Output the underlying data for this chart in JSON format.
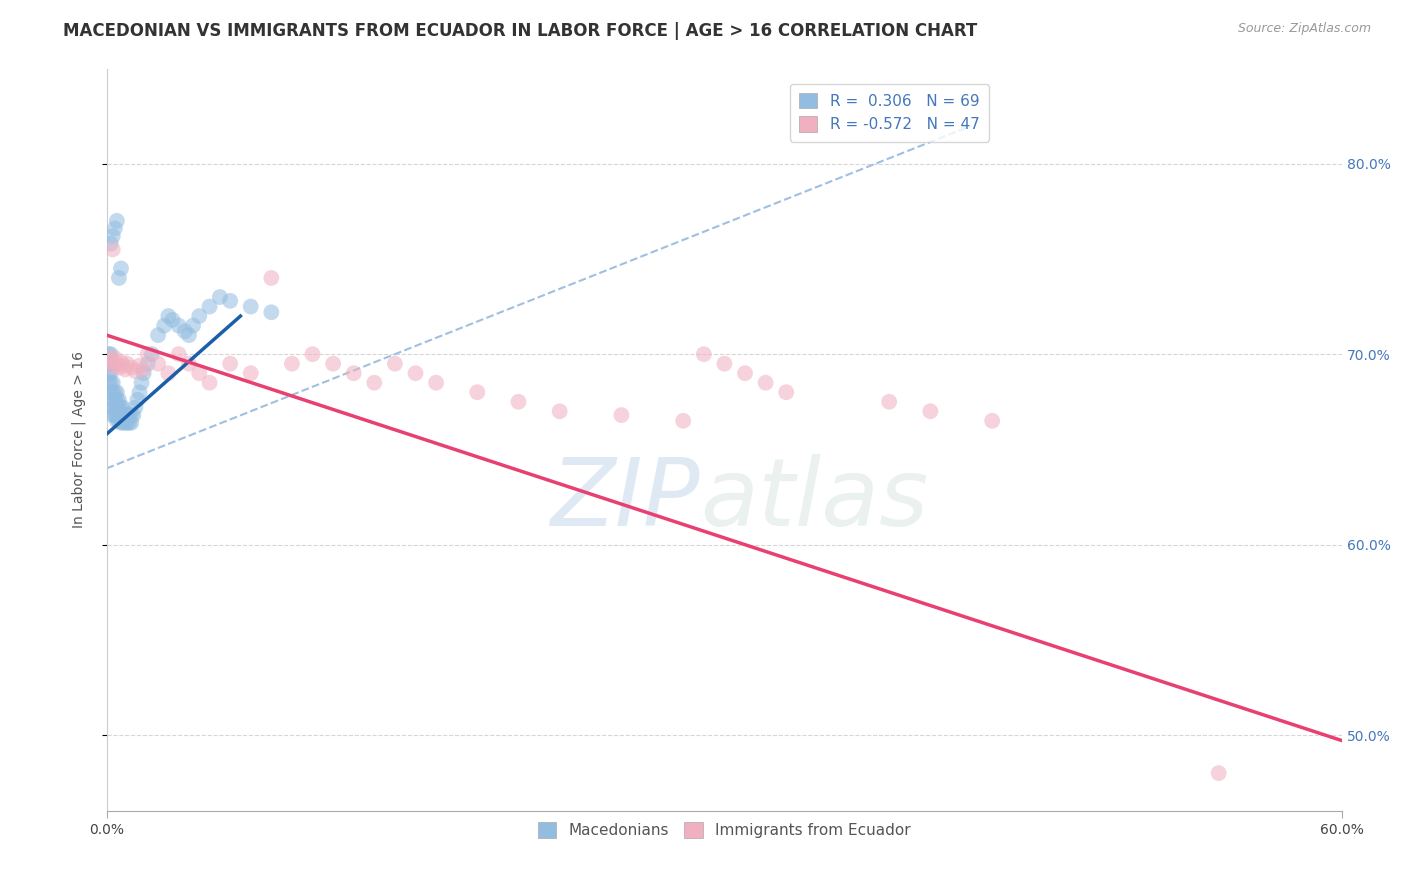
{
  "title": "MACEDONIAN VS IMMIGRANTS FROM ECUADOR IN LABOR FORCE | AGE > 16 CORRELATION CHART",
  "source_text": "Source: ZipAtlas.com",
  "ylabel": "In Labor Force | Age > 16",
  "watermark_zip": "ZIP",
  "watermark_atlas": "atlas",
  "legend_line1": "R =  0.306   N = 69",
  "legend_line2": "R = -0.572   N = 47",
  "legend_label1": "Macedonians",
  "legend_label2": "Immigrants from Ecuador",
  "blue_color": "#92bce0",
  "pink_color": "#f0b0c0",
  "blue_line_color": "#1a5fa8",
  "pink_line_color": "#e84070",
  "dashed_line_color": "#a0c0e0",
  "xlim": [
    0.0,
    0.6
  ],
  "ylim": [
    0.46,
    0.85
  ],
  "ytick_values": [
    0.5,
    0.6,
    0.7,
    0.8
  ],
  "ytick_labels": [
    "50.0%",
    "60.0%",
    "70.0%",
    "80.0%"
  ],
  "xtick_values": [
    0.0,
    0.6
  ],
  "xtick_labels": [
    "0.0%",
    "60.0%"
  ],
  "blue_scatter_x": [
    0.001,
    0.001,
    0.001,
    0.001,
    0.002,
    0.002,
    0.002,
    0.002,
    0.002,
    0.003,
    0.003,
    0.003,
    0.003,
    0.003,
    0.004,
    0.004,
    0.004,
    0.004,
    0.005,
    0.005,
    0.005,
    0.005,
    0.005,
    0.006,
    0.006,
    0.006,
    0.006,
    0.007,
    0.007,
    0.007,
    0.008,
    0.008,
    0.008,
    0.009,
    0.009,
    0.01,
    0.01,
    0.011,
    0.011,
    0.012,
    0.012,
    0.013,
    0.014,
    0.015,
    0.016,
    0.017,
    0.018,
    0.02,
    0.022,
    0.025,
    0.028,
    0.03,
    0.032,
    0.035,
    0.038,
    0.04,
    0.042,
    0.045,
    0.05,
    0.055,
    0.06,
    0.07,
    0.08,
    0.002,
    0.003,
    0.004,
    0.005,
    0.006,
    0.007
  ],
  "blue_scatter_y": [
    0.685,
    0.69,
    0.695,
    0.7,
    0.68,
    0.685,
    0.69,
    0.695,
    0.7,
    0.668,
    0.672,
    0.676,
    0.68,
    0.685,
    0.668,
    0.672,
    0.676,
    0.68,
    0.665,
    0.668,
    0.672,
    0.676,
    0.68,
    0.665,
    0.668,
    0.672,
    0.676,
    0.664,
    0.668,
    0.672,
    0.664,
    0.668,
    0.672,
    0.664,
    0.668,
    0.664,
    0.668,
    0.664,
    0.668,
    0.664,
    0.668,
    0.668,
    0.672,
    0.676,
    0.68,
    0.685,
    0.69,
    0.695,
    0.7,
    0.71,
    0.715,
    0.72,
    0.718,
    0.715,
    0.712,
    0.71,
    0.715,
    0.72,
    0.725,
    0.73,
    0.728,
    0.725,
    0.722,
    0.758,
    0.762,
    0.766,
    0.77,
    0.74,
    0.745
  ],
  "pink_scatter_x": [
    0.001,
    0.002,
    0.003,
    0.004,
    0.005,
    0.006,
    0.007,
    0.008,
    0.009,
    0.01,
    0.012,
    0.014,
    0.016,
    0.018,
    0.02,
    0.025,
    0.03,
    0.035,
    0.04,
    0.045,
    0.05,
    0.06,
    0.07,
    0.08,
    0.09,
    0.1,
    0.11,
    0.12,
    0.13,
    0.14,
    0.15,
    0.16,
    0.18,
    0.2,
    0.22,
    0.25,
    0.28,
    0.29,
    0.3,
    0.31,
    0.32,
    0.33,
    0.38,
    0.4,
    0.43,
    0.54,
    0.003
  ],
  "pink_scatter_y": [
    0.698,
    0.696,
    0.694,
    0.698,
    0.695,
    0.693,
    0.696,
    0.694,
    0.692,
    0.695,
    0.693,
    0.691,
    0.694,
    0.692,
    0.7,
    0.695,
    0.69,
    0.7,
    0.695,
    0.69,
    0.685,
    0.695,
    0.69,
    0.74,
    0.695,
    0.7,
    0.695,
    0.69,
    0.685,
    0.695,
    0.69,
    0.685,
    0.68,
    0.675,
    0.67,
    0.668,
    0.665,
    0.7,
    0.695,
    0.69,
    0.685,
    0.68,
    0.675,
    0.67,
    0.665,
    0.48,
    0.755
  ],
  "blue_line_x": [
    0.0,
    0.065
  ],
  "blue_line_y": [
    0.658,
    0.72
  ],
  "pink_line_x": [
    0.0,
    0.6
  ],
  "pink_line_y": [
    0.71,
    0.497
  ],
  "dashed_line_x": [
    0.0,
    0.42
  ],
  "dashed_line_y": [
    0.64,
    0.82
  ],
  "title_fontsize": 12,
  "axis_label_fontsize": 10,
  "tick_fontsize": 10,
  "legend_fontsize": 11,
  "source_fontsize": 9,
  "background_color": "#ffffff",
  "grid_color": "#cccccc",
  "title_color": "#333333",
  "axis_label_color": "#555555",
  "tick_color_right": "#4477bb",
  "tick_color_bottom": "#444444"
}
